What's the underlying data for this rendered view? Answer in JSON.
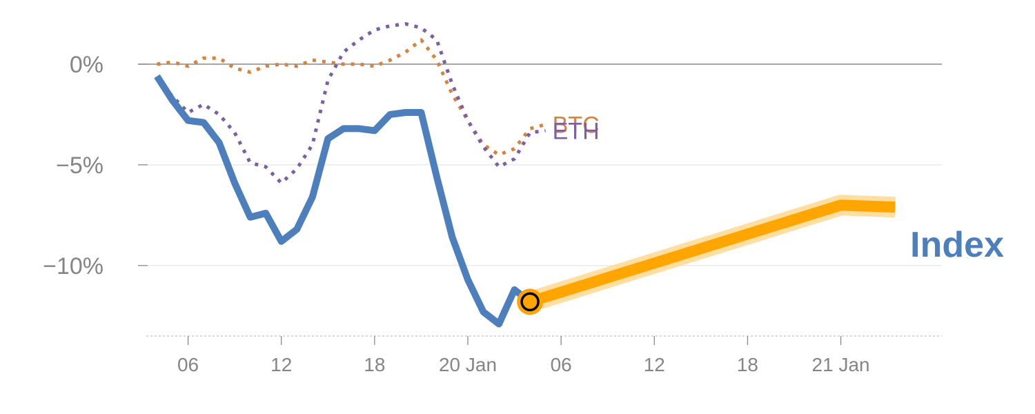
{
  "chart_data": {
    "type": "line",
    "y_unit": "%",
    "ylim": [
      -13.5,
      2.5
    ],
    "y_ticks": [
      {
        "value": 0,
        "label": "0%"
      },
      {
        "value": -5,
        "label": "−5%"
      },
      {
        "value": -10,
        "label": "−10%"
      }
    ],
    "x_unit": "hour",
    "xlim": [
      0,
      51.5
    ],
    "x_ticks": [
      {
        "value": 3,
        "label": "06"
      },
      {
        "value": 9,
        "label": "12"
      },
      {
        "value": 15,
        "label": "18"
      },
      {
        "value": 21,
        "label": "20 Jan"
      },
      {
        "value": 27,
        "label": "06"
      },
      {
        "value": 33,
        "label": "12"
      },
      {
        "value": 39,
        "label": "18"
      },
      {
        "value": 45,
        "label": "21 Jan"
      }
    ],
    "grid": true,
    "series": [
      {
        "name": "BTC",
        "style": "dotted",
        "color": "#d9823b",
        "points": [
          [
            1,
            0
          ],
          [
            2,
            0.1
          ],
          [
            3,
            -0.1
          ],
          [
            4,
            0.3
          ],
          [
            5,
            0.3
          ],
          [
            6,
            -0.2
          ],
          [
            7,
            -0.4
          ],
          [
            8,
            -0.1
          ],
          [
            9,
            0
          ],
          [
            10,
            -0.1
          ],
          [
            11,
            0.2
          ],
          [
            12,
            0.1
          ],
          [
            13,
            0
          ],
          [
            14,
            0
          ],
          [
            15,
            -0.1
          ],
          [
            16,
            0.2
          ],
          [
            17,
            0.6
          ],
          [
            18,
            1.2
          ],
          [
            19,
            0.2
          ],
          [
            20,
            -1.5
          ],
          [
            21,
            -2.8
          ],
          [
            22,
            -4
          ],
          [
            23,
            -4.5
          ],
          [
            24,
            -4.2
          ],
          [
            25,
            -3.2
          ],
          [
            26,
            -3
          ]
        ]
      },
      {
        "name": "ETH",
        "style": "dotted",
        "color": "#7b5ea7",
        "points": [
          [
            1,
            -0.7
          ],
          [
            2,
            -1.6
          ],
          [
            3,
            -2.4
          ],
          [
            4,
            -2
          ],
          [
            5,
            -2.5
          ],
          [
            6,
            -3.4
          ],
          [
            7,
            -4.9
          ],
          [
            8,
            -5.1
          ],
          [
            9,
            -5.9
          ],
          [
            10,
            -5.2
          ],
          [
            11,
            -4
          ],
          [
            12,
            -0.8
          ],
          [
            13,
            0.6
          ],
          [
            14,
            1.2
          ],
          [
            15,
            1.7
          ],
          [
            16,
            1.9
          ],
          [
            17,
            2
          ],
          [
            18,
            1.8
          ],
          [
            19,
            1.2
          ],
          [
            20,
            -1
          ],
          [
            21,
            -2.8
          ],
          [
            22,
            -4.1
          ],
          [
            23,
            -5.1
          ],
          [
            24,
            -4.7
          ],
          [
            25,
            -3.4
          ],
          [
            26,
            -3.3
          ]
        ]
      },
      {
        "name": "Index",
        "style": "solid",
        "color": "#4e7fbd",
        "points": [
          [
            1,
            -0.6
          ],
          [
            2,
            -1.8
          ],
          [
            3,
            -2.8
          ],
          [
            4,
            -2.9
          ],
          [
            5,
            -3.9
          ],
          [
            6,
            -5.9
          ],
          [
            7,
            -7.6
          ],
          [
            8,
            -7.4
          ],
          [
            9,
            -8.8
          ],
          [
            10,
            -8.2
          ],
          [
            11,
            -6.6
          ],
          [
            12,
            -3.7
          ],
          [
            13,
            -3.2
          ],
          [
            14,
            -3.2
          ],
          [
            15,
            -3.3
          ],
          [
            16,
            -2.5
          ],
          [
            17,
            -2.4
          ],
          [
            18,
            -2.4
          ],
          [
            19,
            -5.6
          ],
          [
            20,
            -8.6
          ],
          [
            21,
            -10.7
          ],
          [
            22,
            -12.3
          ],
          [
            23,
            -12.9
          ],
          [
            24,
            -11.2
          ],
          [
            25,
            -11.8
          ]
        ]
      }
    ],
    "highlight_segment": {
      "color": "#ffa500",
      "points": [
        [
          25,
          -11.8
        ],
        [
          45,
          -7
        ],
        [
          48.5,
          -7.1
        ]
      ]
    },
    "marker": {
      "x": 25,
      "y": -11.8
    }
  }
}
